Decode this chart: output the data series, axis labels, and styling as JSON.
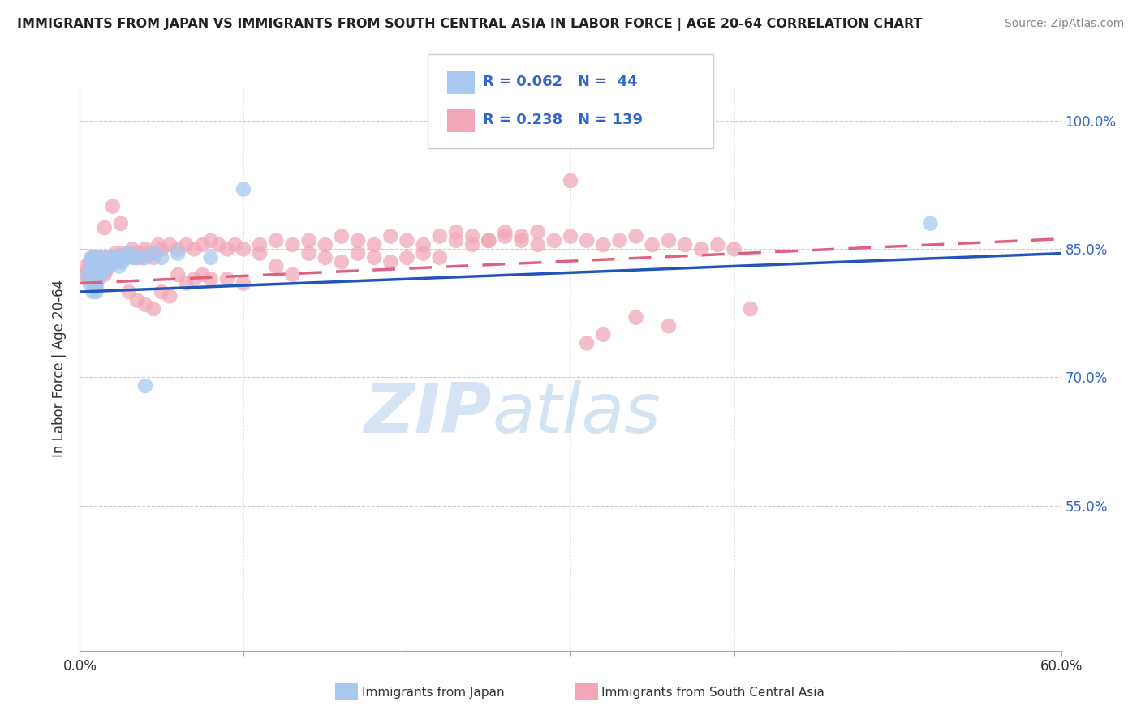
{
  "title": "IMMIGRANTS FROM JAPAN VS IMMIGRANTS FROM SOUTH CENTRAL ASIA IN LABOR FORCE | AGE 20-64 CORRELATION CHART",
  "source": "Source: ZipAtlas.com",
  "ylabel": "In Labor Force | Age 20-64",
  "xlim": [
    0.0,
    0.6
  ],
  "ylim": [
    0.38,
    1.04
  ],
  "xticks": [
    0.0,
    0.1,
    0.2,
    0.3,
    0.4,
    0.5,
    0.6
  ],
  "xticklabels": [
    "0.0%",
    "",
    "",
    "",
    "",
    "",
    "60.0%"
  ],
  "ytick_positions": [
    0.55,
    0.7,
    0.85,
    1.0
  ],
  "ytick_labels": [
    "55.0%",
    "70.0%",
    "85.0%",
    "100.0%"
  ],
  "grid_yticks": [
    0.55,
    0.7,
    0.85,
    1.0
  ],
  "blue_color": "#a8c8f0",
  "pink_color": "#f0a8b8",
  "blue_line_color": "#2255bb",
  "pink_line_color": "#e06080",
  "legend_R_blue": "0.062",
  "legend_N_blue": "44",
  "legend_R_pink": "0.238",
  "legend_N_pink": "139",
  "legend_label_blue": "Immigrants from Japan",
  "legend_label_pink": "Immigrants from South Central Asia",
  "watermark_zip": "ZIP",
  "watermark_atlas": "atlas",
  "background_color": "#ffffff",
  "grid_color": "#cccccc",
  "blue_trend_x0": 0.0,
  "blue_trend_x1": 0.6,
  "blue_trend_y0": 0.8,
  "blue_trend_y1": 0.845,
  "pink_trend_x0": 0.0,
  "pink_trend_x1": 0.6,
  "pink_trend_y0": 0.81,
  "pink_trend_y1": 0.862,
  "blue_scatter_x": [
    0.005,
    0.006,
    0.007,
    0.007,
    0.008,
    0.008,
    0.008,
    0.009,
    0.009,
    0.009,
    0.01,
    0.01,
    0.01,
    0.01,
    0.01,
    0.011,
    0.011,
    0.012,
    0.012,
    0.013,
    0.014,
    0.014,
    0.015,
    0.016,
    0.017,
    0.018,
    0.02,
    0.021,
    0.022,
    0.024,
    0.025,
    0.026,
    0.028,
    0.03,
    0.032,
    0.035,
    0.04,
    0.045,
    0.05,
    0.06,
    0.08,
    0.1,
    0.52,
    0.04
  ],
  "blue_scatter_y": [
    0.82,
    0.81,
    0.83,
    0.84,
    0.82,
    0.835,
    0.8,
    0.825,
    0.815,
    0.805,
    0.84,
    0.835,
    0.82,
    0.81,
    0.8,
    0.825,
    0.815,
    0.83,
    0.84,
    0.82,
    0.835,
    0.825,
    0.83,
    0.835,
    0.84,
    0.83,
    0.835,
    0.84,
    0.835,
    0.83,
    0.84,
    0.835,
    0.84,
    0.845,
    0.84,
    0.84,
    0.84,
    0.845,
    0.84,
    0.845,
    0.84,
    0.92,
    0.88,
    0.69
  ],
  "pink_scatter_x": [
    0.003,
    0.004,
    0.005,
    0.005,
    0.006,
    0.006,
    0.007,
    0.007,
    0.007,
    0.008,
    0.008,
    0.008,
    0.009,
    0.009,
    0.009,
    0.009,
    0.01,
    0.01,
    0.01,
    0.01,
    0.01,
    0.01,
    0.01,
    0.01,
    0.011,
    0.011,
    0.011,
    0.012,
    0.012,
    0.012,
    0.013,
    0.013,
    0.014,
    0.014,
    0.015,
    0.015,
    0.016,
    0.016,
    0.017,
    0.018,
    0.019,
    0.02,
    0.021,
    0.022,
    0.023,
    0.024,
    0.025,
    0.026,
    0.028,
    0.03,
    0.032,
    0.034,
    0.036,
    0.038,
    0.04,
    0.042,
    0.045,
    0.048,
    0.05,
    0.055,
    0.06,
    0.065,
    0.07,
    0.075,
    0.08,
    0.085,
    0.09,
    0.095,
    0.1,
    0.11,
    0.12,
    0.13,
    0.14,
    0.15,
    0.16,
    0.17,
    0.18,
    0.19,
    0.2,
    0.21,
    0.22,
    0.23,
    0.24,
    0.25,
    0.26,
    0.27,
    0.28,
    0.29,
    0.3,
    0.31,
    0.32,
    0.33,
    0.34,
    0.35,
    0.36,
    0.37,
    0.38,
    0.39,
    0.4,
    0.03,
    0.035,
    0.04,
    0.045,
    0.05,
    0.055,
    0.06,
    0.065,
    0.07,
    0.075,
    0.08,
    0.09,
    0.1,
    0.11,
    0.12,
    0.13,
    0.14,
    0.15,
    0.16,
    0.17,
    0.18,
    0.19,
    0.2,
    0.21,
    0.22,
    0.23,
    0.24,
    0.25,
    0.26,
    0.27,
    0.28,
    0.3,
    0.32,
    0.34,
    0.015,
    0.02,
    0.025,
    0.31,
    0.36,
    0.41
  ],
  "pink_scatter_y": [
    0.82,
    0.83,
    0.815,
    0.825,
    0.835,
    0.82,
    0.825,
    0.835,
    0.815,
    0.84,
    0.82,
    0.83,
    0.84,
    0.825,
    0.815,
    0.81,
    0.84,
    0.835,
    0.825,
    0.82,
    0.815,
    0.81,
    0.805,
    0.83,
    0.84,
    0.825,
    0.815,
    0.835,
    0.82,
    0.83,
    0.835,
    0.82,
    0.84,
    0.825,
    0.835,
    0.82,
    0.84,
    0.825,
    0.83,
    0.84,
    0.835,
    0.84,
    0.84,
    0.845,
    0.835,
    0.84,
    0.84,
    0.845,
    0.84,
    0.845,
    0.85,
    0.84,
    0.845,
    0.84,
    0.85,
    0.845,
    0.84,
    0.855,
    0.85,
    0.855,
    0.85,
    0.855,
    0.85,
    0.855,
    0.86,
    0.855,
    0.85,
    0.855,
    0.85,
    0.855,
    0.86,
    0.855,
    0.86,
    0.855,
    0.865,
    0.86,
    0.855,
    0.865,
    0.86,
    0.855,
    0.865,
    0.86,
    0.855,
    0.86,
    0.865,
    0.86,
    0.855,
    0.86,
    0.865,
    0.86,
    0.855,
    0.86,
    0.865,
    0.855,
    0.86,
    0.855,
    0.85,
    0.855,
    0.85,
    0.8,
    0.79,
    0.785,
    0.78,
    0.8,
    0.795,
    0.82,
    0.81,
    0.815,
    0.82,
    0.815,
    0.815,
    0.81,
    0.845,
    0.83,
    0.82,
    0.845,
    0.84,
    0.835,
    0.845,
    0.84,
    0.835,
    0.84,
    0.845,
    0.84,
    0.87,
    0.865,
    0.86,
    0.87,
    0.865,
    0.87,
    0.93,
    0.75,
    0.77,
    0.875,
    0.9,
    0.88,
    0.74,
    0.76,
    0.78
  ]
}
